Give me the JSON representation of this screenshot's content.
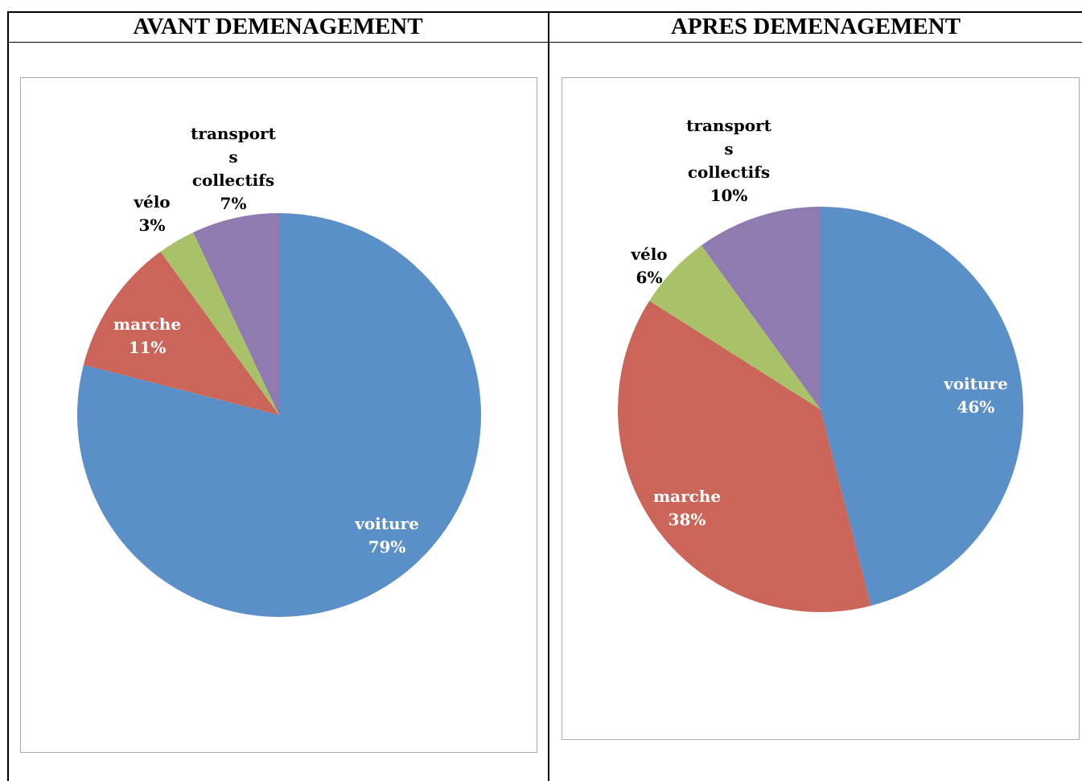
{
  "table": {
    "headers": [
      "AVANT DEMENAGEMENT",
      "APRES DEMENAGEMENT"
    ]
  },
  "chart_data": [
    {
      "type": "pie",
      "categories": [
        "voiture",
        "marche",
        "vélo",
        "transports collectifs"
      ],
      "values": [
        79,
        11,
        3,
        7
      ],
      "value_labels": [
        "79%",
        "11%",
        "3%",
        "7%"
      ],
      "colors": [
        "#5b8fc7",
        "#cb6559",
        "#a9c26a",
        "#8f7bb0"
      ]
    },
    {
      "type": "pie",
      "categories": [
        "voiture",
        "marche",
        "vélo",
        "transports collectifs"
      ],
      "values": [
        46,
        38,
        6,
        10
      ],
      "value_labels": [
        "46%",
        "38%",
        "6%",
        "10%"
      ],
      "colors": [
        "#5b8fc7",
        "#cb6559",
        "#a9c26a",
        "#8f7bb0"
      ]
    }
  ]
}
